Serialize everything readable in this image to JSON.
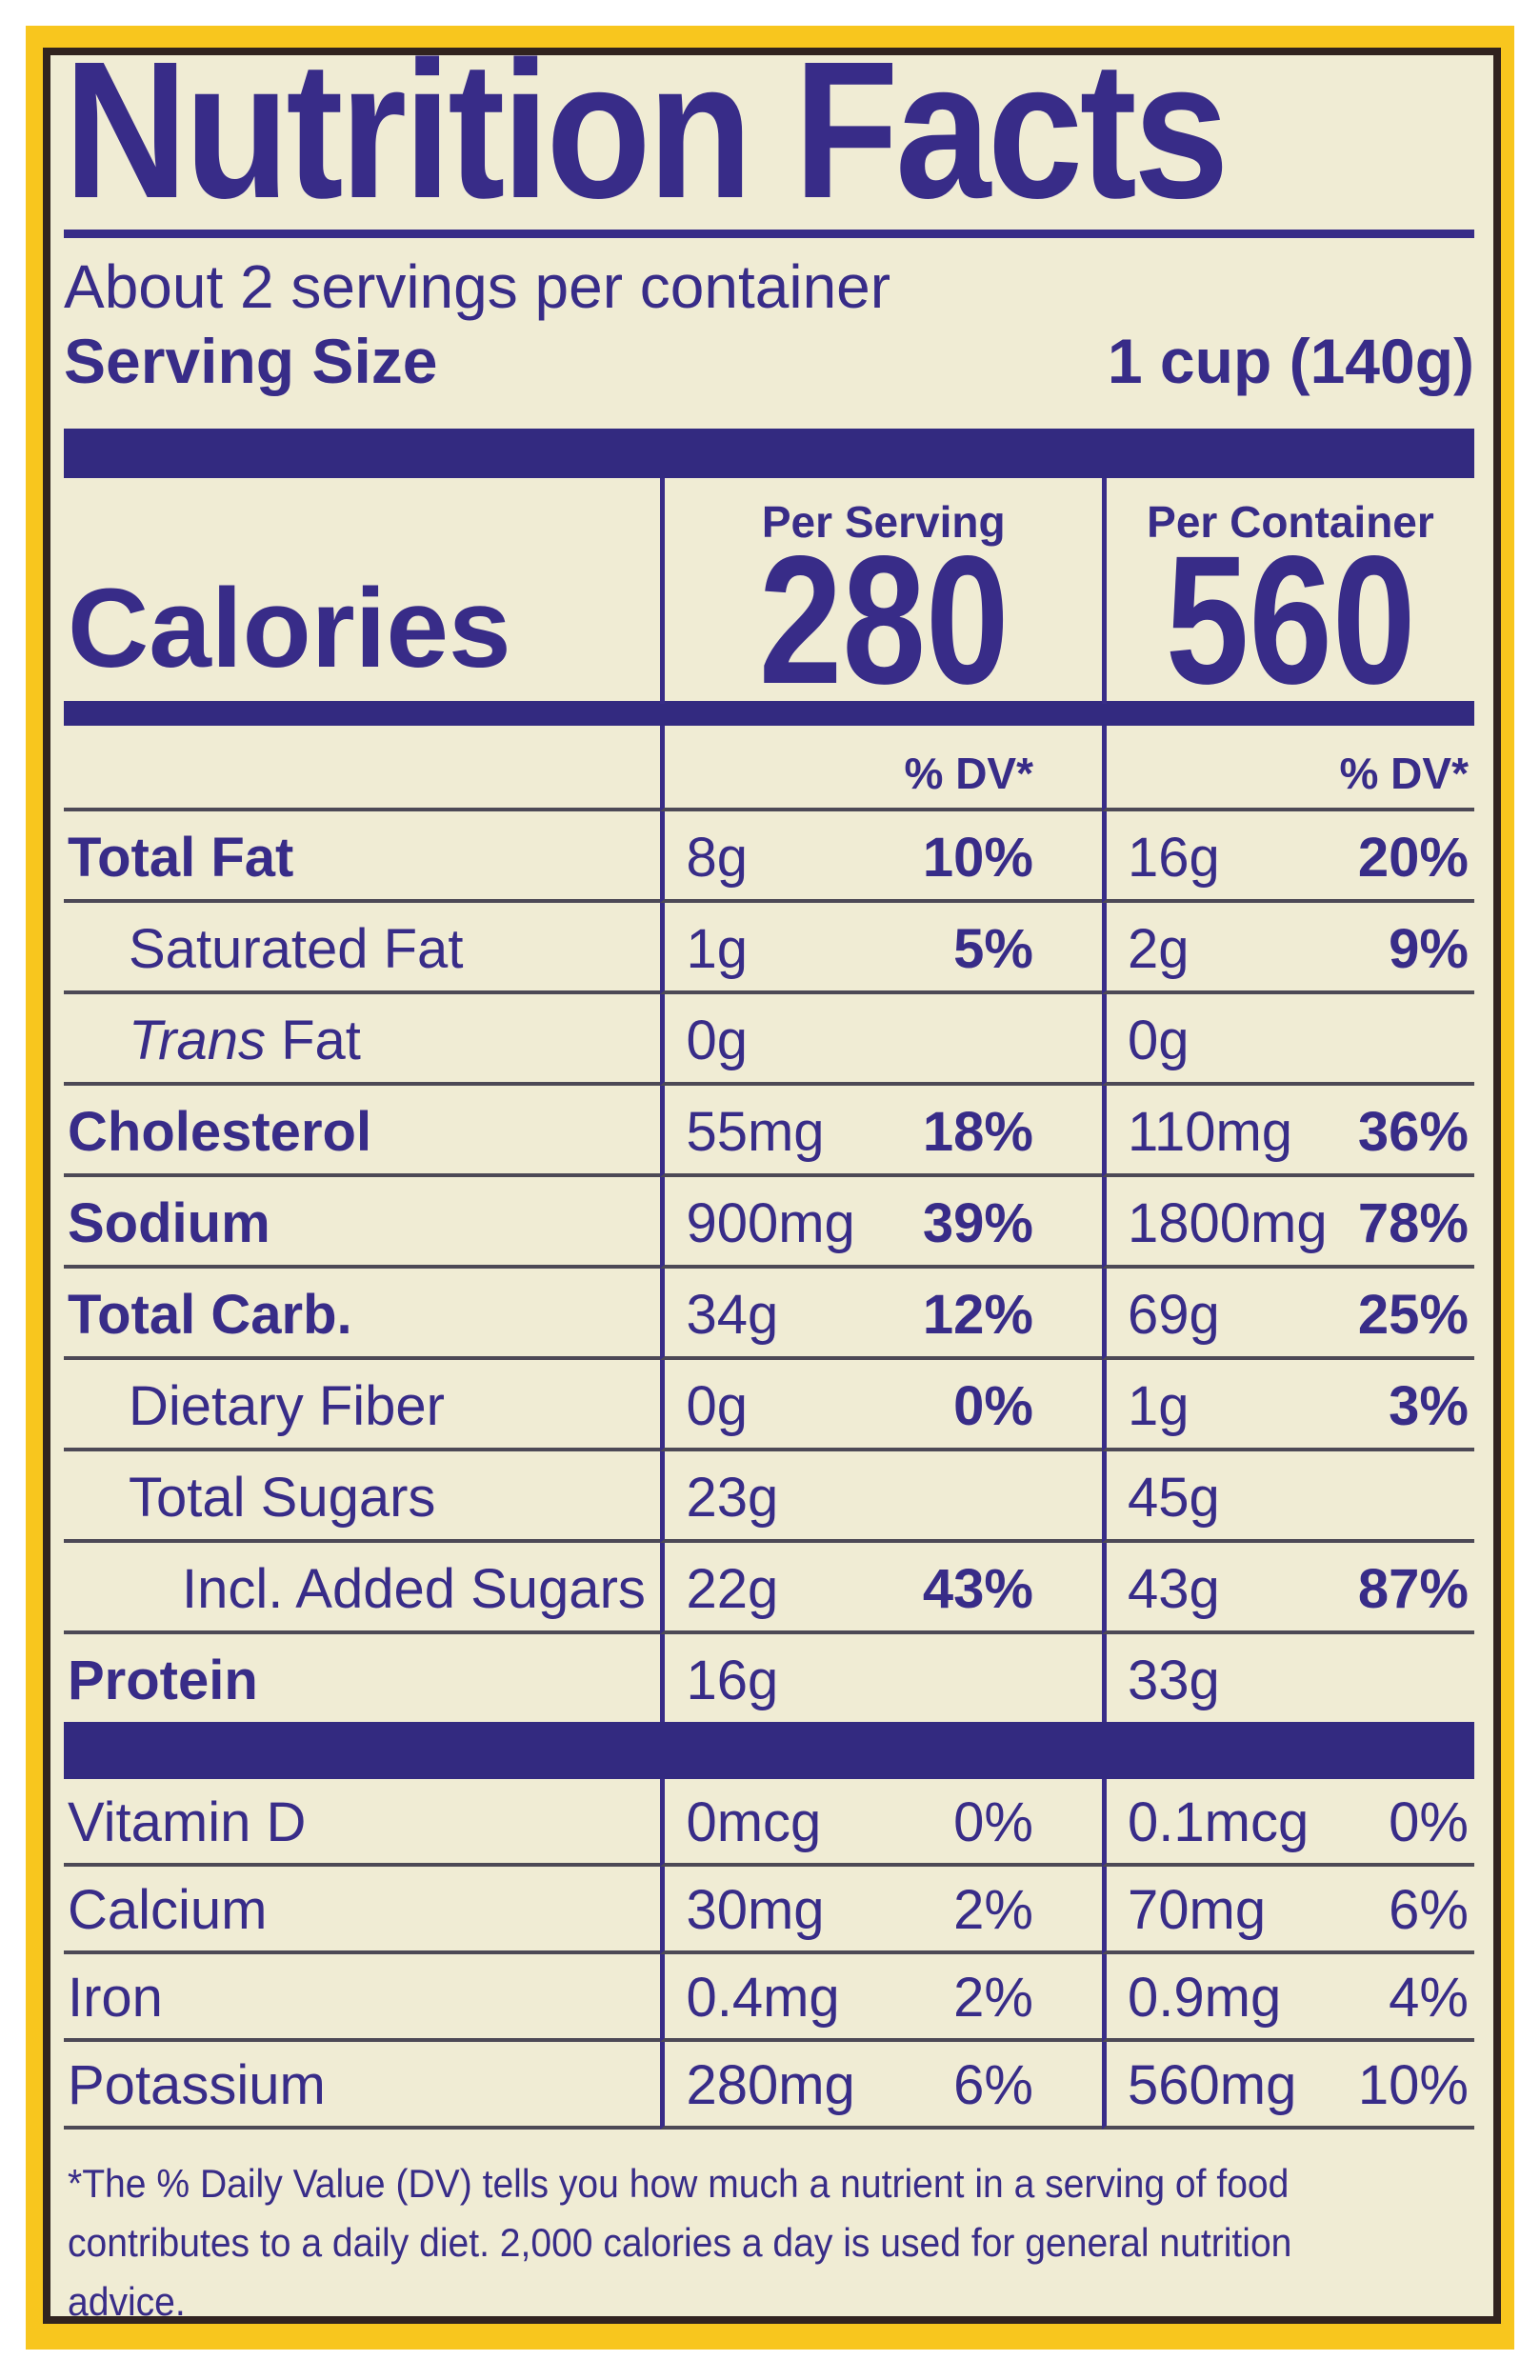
{
  "label": {
    "title": "Nutrition Facts",
    "servings_per_container": "About 2 servings per container",
    "serving_size": {
      "label": "Serving Size",
      "value": "1 cup (140g)"
    },
    "calories": {
      "label": "Calories",
      "header_per_serving": "Per Serving",
      "header_per_container": "Per Container",
      "per_serving": "280",
      "per_container": "560"
    },
    "dv_column_header": "% DV*",
    "main_rows": [
      {
        "name": "Total Fat",
        "name_bold": true,
        "indent": 0,
        "per_serving": {
          "amount": "8g",
          "dv": "10%"
        },
        "per_container": {
          "amount": "16g",
          "dv": "20%"
        }
      },
      {
        "name": "Saturated Fat",
        "name_bold": false,
        "indent": 1,
        "per_serving": {
          "amount": "1g",
          "dv": "5%"
        },
        "per_container": {
          "amount": "2g",
          "dv": "9%"
        }
      },
      {
        "name": "Trans Fat",
        "name_bold": false,
        "indent": 1,
        "name_parts": [
          {
            "text": "Trans",
            "italic": true
          },
          {
            "text": " Fat",
            "italic": false
          }
        ],
        "per_serving": {
          "amount": "0g",
          "dv": ""
        },
        "per_container": {
          "amount": "0g",
          "dv": ""
        }
      },
      {
        "name": "Cholesterol",
        "name_bold": true,
        "indent": 0,
        "per_serving": {
          "amount": "55mg",
          "dv": "18%"
        },
        "per_container": {
          "amount": "110mg",
          "dv": "36%"
        }
      },
      {
        "name": "Sodium",
        "name_bold": true,
        "indent": 0,
        "per_serving": {
          "amount": "900mg",
          "dv": "39%"
        },
        "per_container": {
          "amount": "1800mg",
          "dv": "78%"
        }
      },
      {
        "name": "Total Carb.",
        "name_bold": true,
        "indent": 0,
        "per_serving": {
          "amount": "34g",
          "dv": "12%"
        },
        "per_container": {
          "amount": "69g",
          "dv": "25%"
        }
      },
      {
        "name": "Dietary Fiber",
        "name_bold": false,
        "indent": 1,
        "per_serving": {
          "amount": "0g",
          "dv": "0%"
        },
        "per_container": {
          "amount": "1g",
          "dv": "3%"
        }
      },
      {
        "name": "Total Sugars",
        "name_bold": false,
        "indent": 1,
        "per_serving": {
          "amount": "23g",
          "dv": ""
        },
        "per_container": {
          "amount": "45g",
          "dv": ""
        }
      },
      {
        "name": "Incl. Added Sugars",
        "name_bold": false,
        "indent": 2,
        "per_serving": {
          "amount": "22g",
          "dv": "43%"
        },
        "per_container": {
          "amount": "43g",
          "dv": "87%"
        }
      },
      {
        "name": "Protein",
        "name_bold": true,
        "indent": 0,
        "per_serving": {
          "amount": "16g",
          "dv": ""
        },
        "per_container": {
          "amount": "33g",
          "dv": ""
        }
      }
    ],
    "micronutrient_rows": [
      {
        "name": "Vitamin D",
        "name_bold": false,
        "indent": 0,
        "per_serving": {
          "amount": "0mcg",
          "dv": "0%"
        },
        "per_container": {
          "amount": "0.1mcg",
          "dv": "0%"
        }
      },
      {
        "name": "Calcium",
        "name_bold": false,
        "indent": 0,
        "per_serving": {
          "amount": "30mg",
          "dv": "2%"
        },
        "per_container": {
          "amount": "70mg",
          "dv": "6%"
        }
      },
      {
        "name": "Iron",
        "name_bold": false,
        "indent": 0,
        "per_serving": {
          "amount": "0.4mg",
          "dv": "2%"
        },
        "per_container": {
          "amount": "0.9mg",
          "dv": "4%"
        }
      },
      {
        "name": "Potassium",
        "name_bold": false,
        "indent": 0,
        "per_serving": {
          "amount": "280mg",
          "dv": "6%"
        },
        "per_container": {
          "amount": "560mg",
          "dv": "10%"
        }
      }
    ],
    "footnote_lines": [
      "*The % Daily Value (DV) tells you how much a nutrient in a serving of food",
      "contributes to a daily diet. 2,000 calories a day is used for general nutrition",
      "advice."
    ],
    "footnote": "*The % Daily Value (DV) tells you how much a nutrient in a serving of food contributes to a daily diet. 2,000 calories a day is used for general nutrition advice."
  },
  "colors": {
    "ink": "#382C88",
    "bar": "#332A80",
    "rule": "#4D4956",
    "cream": "#F0ECD4",
    "yellow": "#F8C61E",
    "frame": "#31231F",
    "white": "#FFFFFF"
  }
}
